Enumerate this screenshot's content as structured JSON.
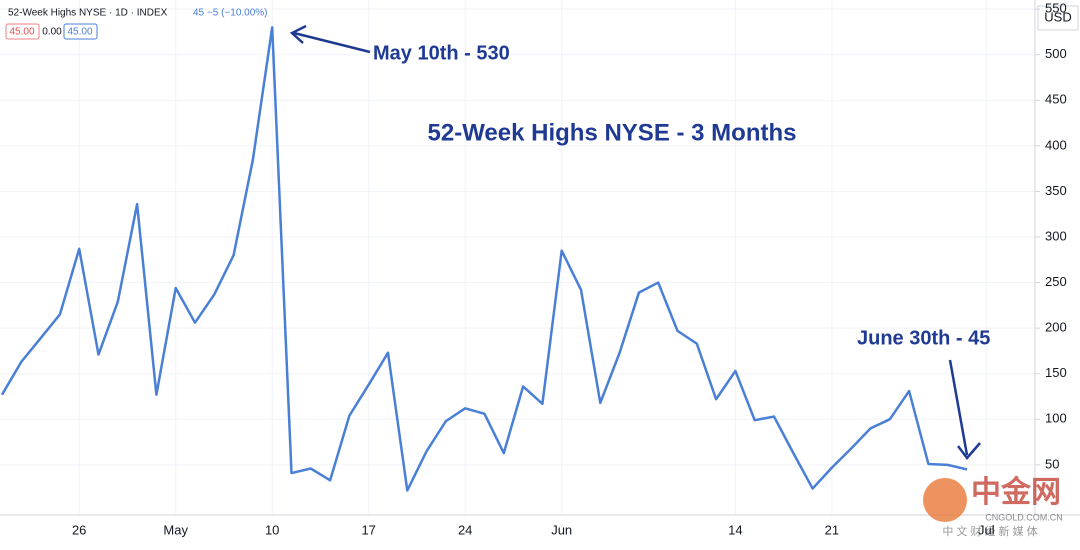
{
  "header": {
    "symbol": "52-Week Highs NYSE · 1D · INDEX",
    "quote": "45 −5 (−10.00%)",
    "box_left": "45.00",
    "middle": "0.00",
    "box_right": "45.00"
  },
  "chart_data": {
    "type": "line",
    "title": "52-Week Highs NYSE - 3 Months",
    "annotations": [
      "May 10th - 530",
      "June 30th - 45"
    ],
    "y_axis_label": "USD",
    "categories": [
      null,
      null,
      null,
      null,
      "26",
      null,
      null,
      null,
      null,
      "May",
      null,
      null,
      null,
      null,
      "10",
      null,
      null,
      null,
      null,
      "17",
      null,
      null,
      null,
      null,
      "24",
      null,
      null,
      null,
      null,
      "Jun",
      null,
      null,
      null,
      null,
      null,
      null,
      null,
      null,
      "14",
      null,
      null,
      null,
      null,
      "21",
      null,
      null,
      null,
      null,
      null,
      null,
      null,
      "Jul"
    ],
    "series": [
      {
        "name": "52-Week Highs NYSE",
        "color": "#4a7fd6",
        "values": [
          127,
          163,
          189,
          215,
          287,
          171,
          229,
          336,
          127,
          244,
          206,
          237,
          280,
          385,
          530,
          41,
          46,
          33,
          104,
          138,
          173,
          22,
          65,
          98,
          112,
          106,
          63,
          136,
          117,
          285,
          242,
          118,
          173,
          239,
          250,
          197,
          183,
          122,
          153,
          99,
          103,
          63,
          24,
          47,
          68,
          90,
          100,
          131,
          51,
          50,
          45,
          null
        ]
      }
    ],
    "ylim": [
      -5,
      560
    ],
    "yticks": [
      50,
      100,
      150,
      200,
      250,
      300,
      350,
      400,
      450,
      500,
      550
    ],
    "grid": true
  },
  "watermark": {
    "brand": "中金网",
    "domain": "CNGOLD.COM.CN",
    "tagline": "中 文 财 经 新 媒 体"
  }
}
